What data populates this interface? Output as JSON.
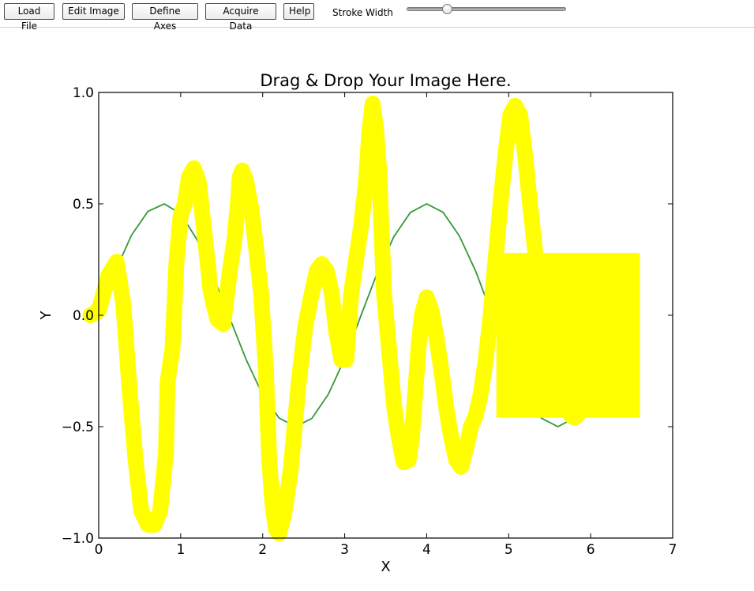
{
  "toolbar": {
    "buttons": [
      {
        "label": "Load File"
      },
      {
        "label": "Edit Image"
      },
      {
        "label": "Define Axes"
      },
      {
        "label": "Acquire Data"
      },
      {
        "label": "Help"
      }
    ],
    "stroke_label": "Stroke Width",
    "stroke_value": 0.24
  },
  "chart_data": {
    "type": "line",
    "title": "Drag & Drop Your Image Here.",
    "xlabel": "X",
    "ylabel": "Y",
    "xlim": [
      0,
      7
    ],
    "ylim": [
      -1.0,
      1.0
    ],
    "xticks": [
      0,
      1,
      2,
      3,
      4,
      5,
      6,
      7
    ],
    "yticks": [
      -1.0,
      -0.5,
      0.0,
      0.5,
      1.0
    ],
    "ytick_labels": [
      "−1.0",
      "−0.5",
      "0.0",
      "0.5",
      "1.0"
    ],
    "series_color": "#339933",
    "series": [
      {
        "x": [
          0,
          0.2,
          0.4,
          0.6,
          0.8,
          1.0,
          1.2,
          1.4,
          1.6,
          1.8,
          2.0,
          2.2,
          2.4,
          2.6,
          2.8,
          3.0,
          3.2,
          3.4,
          3.6,
          3.8,
          4.0,
          4.2,
          4.4,
          4.6,
          4.8,
          5.0,
          5.2,
          5.4,
          5.6,
          5.8,
          6.0,
          6.2
        ],
        "y": [
          0.0,
          0.196,
          0.359,
          0.466,
          0.5,
          0.455,
          0.339,
          0.172,
          -0.015,
          -0.2,
          -0.357,
          -0.461,
          -0.5,
          -0.463,
          -0.355,
          -0.195,
          0.0,
          0.193,
          0.353,
          0.461,
          0.5,
          0.462,
          0.355,
          0.196,
          0.0,
          -0.193,
          -0.354,
          -0.462,
          -0.5,
          -0.461,
          -0.353,
          -0.187
        ]
      }
    ],
    "annotation_color": "#ffff00",
    "annotation_stroke": {
      "x": [
        -0.1,
        0.0,
        0.12,
        0.22,
        0.3,
        0.38,
        0.45,
        0.52,
        0.6,
        0.68,
        0.75,
        0.82,
        0.84,
        0.86,
        0.9,
        0.95,
        1.0,
        1.05,
        1.1,
        1.16,
        1.22,
        1.28,
        1.34,
        1.36,
        1.4,
        1.45,
        1.52,
        1.6,
        1.66,
        1.7,
        1.72,
        1.75,
        1.8,
        1.86,
        1.92,
        1.98,
        2.04,
        2.08,
        2.12,
        2.16,
        2.2,
        2.26,
        2.34,
        2.44,
        2.52,
        2.6,
        2.66,
        2.72,
        2.78,
        2.84,
        2.9,
        2.96,
        3.02,
        3.08,
        3.14,
        3.2,
        3.26,
        3.3,
        3.34,
        3.38,
        3.42,
        3.48,
        3.54,
        3.6,
        3.66,
        3.72,
        3.78,
        3.82,
        3.86,
        3.9,
        3.94,
        4.0,
        4.06,
        4.12,
        4.18,
        4.24,
        4.3,
        4.36,
        4.42,
        4.48,
        4.54,
        4.6,
        4.66,
        4.72,
        4.78,
        4.84,
        4.9,
        4.96,
        5.02,
        5.08,
        5.14,
        5.2,
        5.26,
        5.32,
        5.36,
        5.4,
        5.46,
        5.52,
        5.58,
        5.64,
        5.7,
        5.76,
        5.8,
        5.84,
        5.9,
        5.96
      ],
      "y": [
        0.0,
        0.02,
        0.18,
        0.24,
        0.05,
        -0.35,
        -0.65,
        -0.88,
        -0.94,
        -0.94,
        -0.88,
        -0.62,
        -0.3,
        -0.25,
        -0.15,
        0.25,
        0.45,
        0.5,
        0.62,
        0.66,
        0.6,
        0.4,
        0.2,
        0.12,
        0.05,
        -0.02,
        -0.04,
        0.2,
        0.35,
        0.52,
        0.62,
        0.65,
        0.6,
        0.48,
        0.3,
        0.1,
        -0.25,
        -0.65,
        -0.85,
        -0.96,
        -0.98,
        -0.9,
        -0.7,
        -0.3,
        -0.05,
        0.1,
        0.2,
        0.23,
        0.2,
        0.1,
        -0.08,
        -0.2,
        -0.2,
        0.1,
        0.25,
        0.4,
        0.6,
        0.82,
        0.95,
        0.85,
        0.65,
        0.1,
        -0.15,
        -0.4,
        -0.55,
        -0.66,
        -0.65,
        -0.55,
        -0.35,
        -0.15,
        0.0,
        0.08,
        0.02,
        -0.1,
        -0.25,
        -0.42,
        -0.55,
        -0.65,
        -0.68,
        -0.6,
        -0.5,
        -0.45,
        -0.35,
        -0.2,
        0.0,
        0.25,
        0.5,
        0.72,
        0.9,
        0.94,
        0.9,
        0.72,
        0.5,
        0.3,
        0.1,
        -0.1,
        -0.2,
        -0.25,
        -0.28,
        -0.35,
        -0.4,
        -0.45,
        -0.46,
        -0.45,
        -0.42,
        -0.4
      ],
      "rect": {
        "x": [
          4.85,
          6.6
        ],
        "y": [
          -0.46,
          0.28
        ]
      }
    }
  }
}
